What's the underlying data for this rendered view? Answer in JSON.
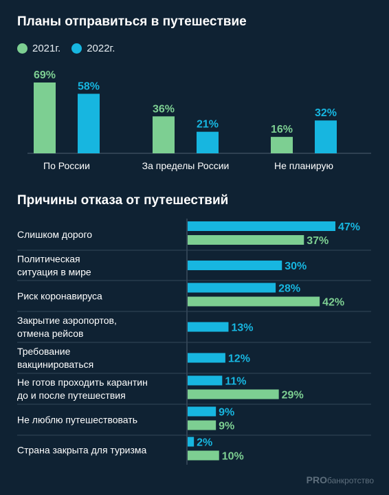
{
  "colors": {
    "c2021": "#7dcf92",
    "c2022": "#17b6e0",
    "axis": "#4f6072",
    "text": "#ffffff",
    "grid": "#33485a"
  },
  "legend": {
    "y2021": "2021г.",
    "y2022": "2022г."
  },
  "brand": {
    "bold": "PRO",
    "rest": "банкротство"
  },
  "chart_data": [
    {
      "type": "bar",
      "title": "Планы отправиться в путешествие",
      "categories": [
        "По России",
        "За пределы России",
        "Не планирую"
      ],
      "series": [
        {
          "name": "2021г.",
          "values": [
            69,
            36,
            16
          ],
          "labels": [
            "69%",
            "36%",
            "16%"
          ]
        },
        {
          "name": "2022г.",
          "values": [
            58,
            21,
            32
          ],
          "labels": [
            "58%",
            "21%",
            "32%"
          ]
        }
      ],
      "ylim": [
        0,
        75
      ],
      "legend_position": "top-left"
    },
    {
      "type": "bar",
      "orientation": "horizontal",
      "title": "Причины отказа от путешествий",
      "categories": [
        [
          "Слишком дорого"
        ],
        [
          "Политическая",
          "ситуация в мире"
        ],
        [
          "Риск коронавируса"
        ],
        [
          "Закрытие аэропортов,",
          "отмена рейсов"
        ],
        [
          "Требование",
          "вакцинироваться"
        ],
        [
          "Не готов проходить карантин",
          "до и после путешествия"
        ],
        [
          "Не люблю путешествовать"
        ],
        [
          "Страна закрыта для туризма"
        ]
      ],
      "series": [
        {
          "name": "2022г.",
          "values": [
            47,
            30,
            28,
            13,
            12,
            11,
            9,
            2
          ],
          "labels": [
            "47%",
            "30%",
            "28%",
            "13%",
            "12%",
            "11%",
            "9%",
            "2%"
          ]
        },
        {
          "name": "2021г.",
          "values": [
            37,
            null,
            42,
            null,
            null,
            29,
            9,
            10
          ],
          "labels": [
            "37%",
            null,
            "42%",
            null,
            null,
            "29%",
            "9%",
            "10%"
          ]
        }
      ],
      "xlim": [
        0,
        50
      ]
    }
  ]
}
